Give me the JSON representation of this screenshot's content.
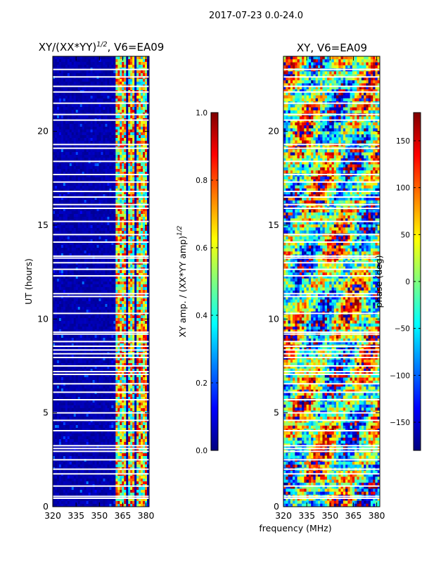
{
  "figure": {
    "suptitle": "2017-07-23 0.0-24.0",
    "shared_xlabel": "frequency (MHz)"
  },
  "colors": {
    "jet": [
      "#00007f",
      "#0000ff",
      "#007fff",
      "#00ffff",
      "#7fff7f",
      "#ffff00",
      "#ff7f00",
      "#ff0000",
      "#7f0000"
    ],
    "axis": "#000000",
    "gap": "#ffffff"
  },
  "chart_data": [
    {
      "type": "heatmap",
      "title_main": "XY/(XX*YY)",
      "title_sup": "1/2",
      "title_tail": ", V6=EA09",
      "xlabel": "",
      "ylabel": "UT (hours)",
      "xlim": [
        320,
        382
      ],
      "ylim": [
        0,
        24
      ],
      "xticks": [
        320,
        335,
        350,
        365,
        380
      ],
      "yticks": [
        0,
        5,
        10,
        15,
        20
      ],
      "colorbar": {
        "label_main": "XY amp. / (XX*YY amp)",
        "label_sup": "1/2",
        "vmin": 0.0,
        "vmax": 1.0,
        "ticks": [
          "0.0",
          "0.2",
          "0.4",
          "0.6",
          "0.8",
          "1.0"
        ],
        "tick_values": [
          0.0,
          0.2,
          0.4,
          0.6,
          0.8,
          1.0
        ]
      },
      "bright_channels_mhz": [
        [
          360,
          367
        ],
        [
          368,
          372
        ],
        [
          374,
          380
        ]
      ]
    },
    {
      "type": "heatmap",
      "title": "XY, V6=EA09",
      "xlabel": "frequency (MHz)",
      "ylabel": "",
      "xlim": [
        320,
        382
      ],
      "ylim": [
        0,
        24
      ],
      "xticks": [
        320,
        335,
        350,
        365,
        380
      ],
      "yticks": [
        0,
        5,
        10,
        15,
        20
      ],
      "colorbar": {
        "label": "phase (deg)",
        "vmin": -180,
        "vmax": 180,
        "ticks": [
          "−150",
          "−100",
          "−50",
          "0",
          "50",
          "100",
          "150"
        ],
        "tick_values": [
          -150,
          -100,
          -50,
          0,
          50,
          100,
          150
        ]
      }
    }
  ],
  "flagged_hours": [
    0.45,
    0.55,
    1.1,
    1.75,
    2.0,
    2.5,
    2.95,
    3.1,
    3.25,
    4.05,
    4.6,
    5.0,
    5.7,
    6.1,
    6.55,
    7.05,
    7.2,
    7.5,
    7.95,
    8.15,
    8.35,
    8.55,
    8.8,
    9.2,
    9.3,
    10.3,
    11.2,
    11.35,
    12.3,
    12.65,
    13.0,
    13.25,
    13.35,
    14.1,
    14.5,
    15.2,
    15.9,
    16.1,
    16.5,
    16.8,
    17.3,
    17.7,
    18.4,
    19.1,
    19.3,
    20.6,
    20.9,
    21.5,
    22.1,
    22.4,
    22.9,
    23.3
  ]
}
